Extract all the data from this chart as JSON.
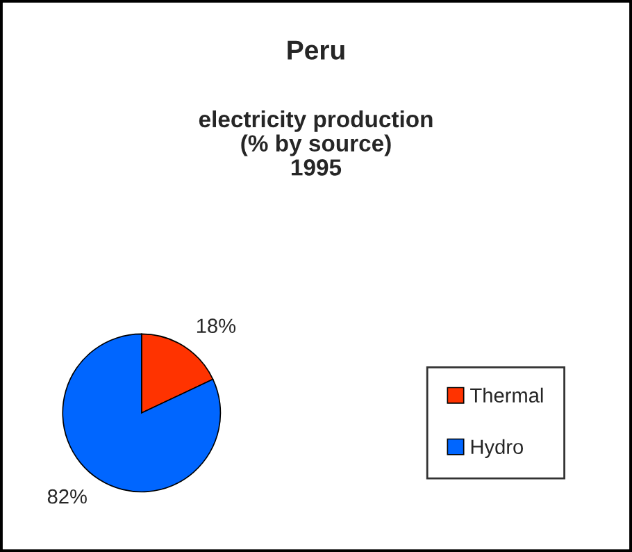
{
  "chart_data": {
    "type": "pie",
    "title": "Peru",
    "subtitle": "electricity production\n(% by source)\n1995",
    "categories": [
      "Thermal",
      "Hydro"
    ],
    "values": [
      18,
      82
    ],
    "colors": [
      "#ff3300",
      "#0066ff"
    ],
    "value_labels": [
      "18%",
      "82%"
    ],
    "legend": "right"
  }
}
